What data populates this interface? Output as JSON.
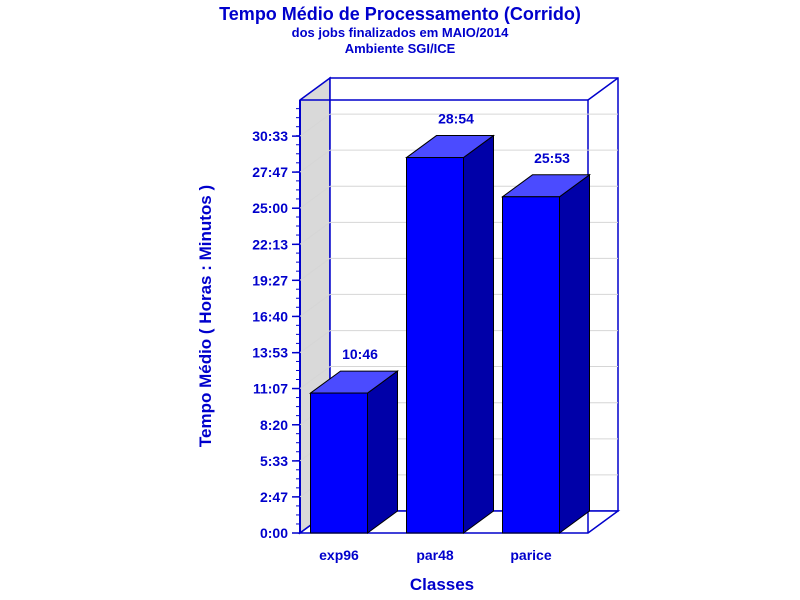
{
  "chart_data": {
    "type": "bar",
    "title": "Tempo Médio de Processamento (Corrido)",
    "subtitle_lines": [
      "dos jobs finalizados em MAIO/2014",
      "Ambiente SGI/ICE"
    ],
    "xlabel": "Classes",
    "ylabel": "Tempo Médio ( Horas : Minutos )",
    "categories": [
      "exp96",
      "par48",
      "parice"
    ],
    "values": [
      10.77,
      28.9,
      25.88
    ],
    "value_labels": [
      "10:46",
      "28:54",
      "25:53"
    ],
    "ylim": [
      0,
      33.33
    ],
    "y_ticks": [
      0,
      2.78,
      5.55,
      8.33,
      11.12,
      13.88,
      16.67,
      19.45,
      22.22,
      25.0,
      27.78,
      30.55
    ],
    "y_tick_labels": [
      "0:00",
      "2:47",
      "5:33",
      "8:20",
      "11:07",
      "13:53",
      "16:40",
      "19:27",
      "22:13",
      "25:00",
      "27:47",
      "30:33"
    ],
    "grid": true,
    "legend": "none",
    "three_d": true,
    "colors": {
      "text": "#0000cc",
      "bar_front": "#0000ff",
      "bar_top": "#4b4bff",
      "bar_side": "#0000a8",
      "side_wall": "#d9d9d9",
      "frame": "#0000cc",
      "grid": "#d6d6d6"
    }
  }
}
